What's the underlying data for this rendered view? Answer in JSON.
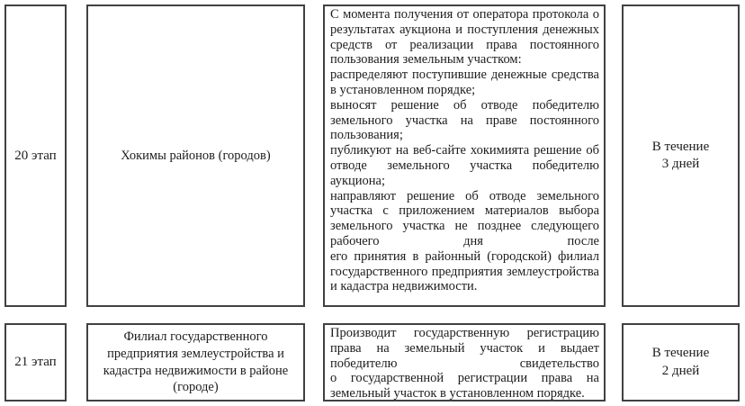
{
  "colors": {
    "border": "#414141",
    "text": "#1c1c1c",
    "background": "#ffffff"
  },
  "table": {
    "rows": [
      {
        "stage": "20 этап",
        "actor": "Хокимы районов (городов)",
        "paragraphs": [
          "С момента получения от оператора протокола о результатах аукциона и поступления денежных средств от реализации права постоянного пользования земельным участком:",
          "распределяют поступившие денежные средства в установленном порядке;",
          "выносят решение об отводе победителю земельного участка на праве постоянного пользования;",
          "публикуют на веб-сайте хокимията решение об отводе земельного участка победителю аукциона;",
          "направляют решение об отводе земельного участка с приложением материалов выбора земельного участка не позднее следующего рабочего дня после",
          "его принятия в районный (городской) филиал государственного предприятия землеустройства и кадастра недвижимости."
        ],
        "duration_lines": [
          "В течение",
          "3 дней"
        ]
      },
      {
        "stage": "21 этап",
        "actor": "Филиал государственного предприятия землеустройства и кадастра недвижимости в районе (городе)",
        "paragraphs": [
          "Производит государственную регистрацию права на земельный участок и выдает победителю свидетельство",
          "о государственной регистрации права на земельный участок в установленном порядке."
        ],
        "duration_lines": [
          "В течение",
          "2 дней"
        ]
      }
    ]
  }
}
